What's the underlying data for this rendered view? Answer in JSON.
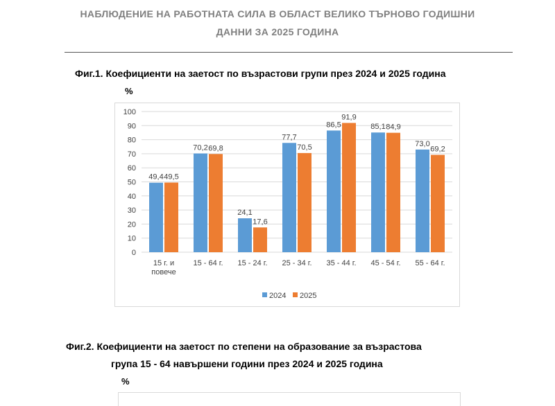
{
  "header": {
    "line1": "НАБЛЮДЕНИЕ НА РАБОТНАТА СИЛА В ОБЛАСТ ВЕЛИКО ТЪРНОВО ГОДИШНИ",
    "line2": "ДАННИ ЗА 2025 ГОДИНА"
  },
  "fig1": {
    "title": "Фиг.1. Коефициенти на заетост по възрастови групи през 2024 и 2025 година",
    "unit": "%"
  },
  "fig2": {
    "title_line1": "Фиг.2. Коефициенти на заетост по степени на образование за възрастова",
    "title_line2": "група 15 - 64 навършени години през 2024 и 2025 година",
    "unit": "%"
  },
  "chart_data": {
    "type": "bar",
    "categories": [
      [
        "15 г. и",
        "повече"
      ],
      [
        "15 - 64 г."
      ],
      [
        "15 - 24 г."
      ],
      [
        "25 - 34 г."
      ],
      [
        "35 - 44 г."
      ],
      [
        "45 - 54 г."
      ],
      [
        "55 - 64 г."
      ]
    ],
    "series": [
      {
        "name": "2024",
        "values": [
          49.4,
          70.2,
          24.1,
          77.7,
          86.5,
          85.1,
          73.0
        ],
        "labels": [
          "49,4",
          "70,2",
          "24,1",
          "77,7",
          "86,5",
          "85,1",
          "73,0"
        ],
        "color": "#5b9bd5"
      },
      {
        "name": "2025",
        "values": [
          49.5,
          69.8,
          17.6,
          70.5,
          91.9,
          84.9,
          69.2
        ],
        "labels": [
          "49,5",
          "69,8",
          "17,6",
          "70,5",
          "91,9",
          "84,9",
          "69,2"
        ],
        "color": "#ed7d31"
      }
    ],
    "ylim": [
      0,
      100
    ],
    "yticks": [
      0,
      10,
      20,
      30,
      40,
      50,
      60,
      70,
      80,
      90,
      100
    ],
    "grid": true,
    "legend_position": "bottom"
  }
}
